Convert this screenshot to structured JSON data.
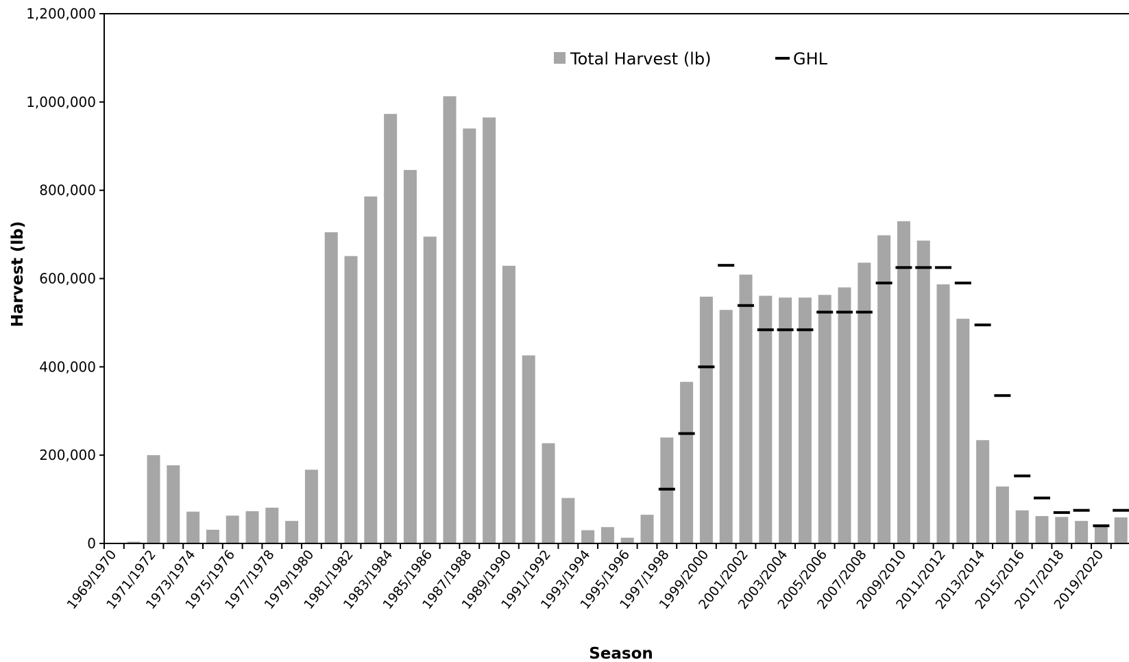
{
  "chart_data": {
    "type": "bar",
    "xlabel": "Season",
    "ylabel": "Harvest (lb)",
    "ylim": [
      0,
      1200000
    ],
    "yticks": [
      0,
      200000,
      400000,
      600000,
      800000,
      1000000,
      1200000
    ],
    "ytick_labels": [
      "0",
      "200,000",
      "400,000",
      "600,000",
      "800,000",
      "1,000,000",
      "1,200,000"
    ],
    "legend_position": "top-center",
    "colors": {
      "bar": "#a6a6a6",
      "ghl": "#000000",
      "axis": "#000000"
    },
    "categories": [
      "1969/1970",
      "1970/1971",
      "1971/1972",
      "1972/1973",
      "1973/1974",
      "1974/1975",
      "1975/1976",
      "1976/1977",
      "1977/1978",
      "1978/1979",
      "1979/1980",
      "1980/1981",
      "1981/1982",
      "1982/1983",
      "1983/1984",
      "1984/1985",
      "1985/1986",
      "1986/1987",
      "1987/1988",
      "1988/1989",
      "1989/1990",
      "1990/1991",
      "1991/1992",
      "1992/1993",
      "1993/1994",
      "1994/1995",
      "1995/1996",
      "1996/1997",
      "1997/1998",
      "1998/1999",
      "1999/2000",
      "2000/2001",
      "2001/2002",
      "2002/2003",
      "2003/2004",
      "2004/2005",
      "2005/2006",
      "2006/2007",
      "2007/2008",
      "2008/2009",
      "2009/2010",
      "2010/2011",
      "2011/2012",
      "2012/2013",
      "2013/2014",
      "2014/2015",
      "2015/2016",
      "2016/2017",
      "2017/2018",
      "2018/2019",
      "2019/2020",
      "2020/2021"
    ],
    "xtick_labels": [
      "1969/1970",
      "1971/1972",
      "1973/1974",
      "1975/1976",
      "1977/1978",
      "1979/1980",
      "1981/1982",
      "1983/1984",
      "1985/1986",
      "1987/1988",
      "1989/1990",
      "1991/1992",
      "1993/1994",
      "1995/1996",
      "1997/1998",
      "1999/2000",
      "2001/2002",
      "2003/2004",
      "2005/2006",
      "2007/2008",
      "2009/2010",
      "2011/2012",
      "2013/2014",
      "2015/2016",
      "2017/2018",
      "2019/2020"
    ],
    "series": [
      {
        "name": "Total Harvest (lb)",
        "type": "bar",
        "values": [
          0,
          4000,
          200000,
          177000,
          72000,
          31000,
          63000,
          73000,
          81000,
          51000,
          167000,
          705000,
          651000,
          786000,
          973000,
          846000,
          695000,
          1013000,
          940000,
          965000,
          629000,
          426000,
          227000,
          103000,
          30000,
          37000,
          13000,
          65000,
          240000,
          366000,
          559000,
          529000,
          609000,
          561000,
          557000,
          557000,
          563000,
          580000,
          636000,
          698000,
          730000,
          686000,
          587000,
          509000,
          234000,
          129000,
          75000,
          62000,
          60000,
          51000,
          40000,
          59000
        ]
      },
      {
        "name": "GHL",
        "type": "marker",
        "values": [
          null,
          null,
          null,
          null,
          null,
          null,
          null,
          null,
          null,
          null,
          null,
          null,
          null,
          null,
          null,
          null,
          null,
          null,
          null,
          null,
          null,
          null,
          null,
          null,
          null,
          null,
          null,
          null,
          123000,
          249000,
          400000,
          630000,
          539000,
          484000,
          484000,
          484000,
          524000,
          524000,
          524000,
          590000,
          625000,
          625000,
          625000,
          590000,
          495000,
          335000,
          153000,
          103000,
          70000,
          75000,
          40000,
          75000
        ]
      }
    ]
  }
}
